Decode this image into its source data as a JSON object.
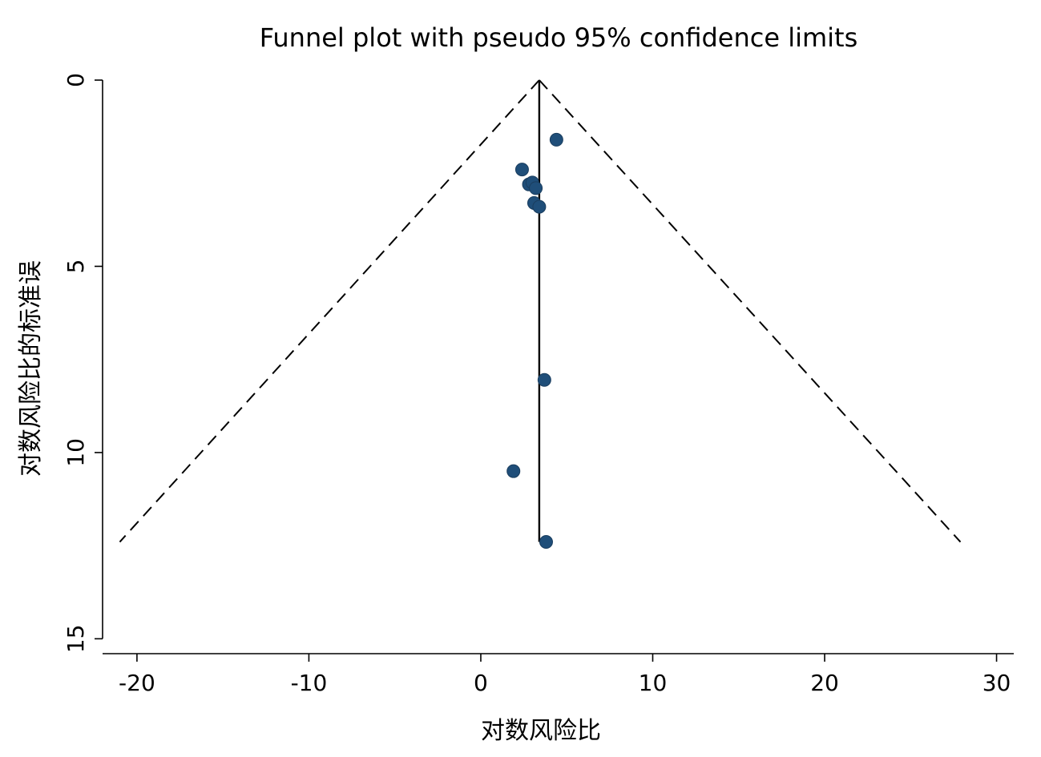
{
  "chart_data": {
    "type": "scatter",
    "title": "Funnel plot with pseudo 95% confidence limits",
    "xlabel": "对数风险比",
    "ylabel": "对数风险比的标准误",
    "xlim": [
      -22,
      31
    ],
    "ylim": [
      0,
      15.4
    ],
    "y_reversed": true,
    "x_ticks": [
      -20,
      -10,
      0,
      10,
      20,
      30
    ],
    "x_tick_labels": [
      "-20",
      "-10",
      "0",
      "10",
      "20",
      "30"
    ],
    "y_ticks": [
      0,
      5,
      10,
      15
    ],
    "y_tick_labels": [
      "0",
      "5",
      "10",
      "15"
    ],
    "grid": false,
    "summary_effect": 3.4,
    "ci_max_se": 12.4,
    "ci_lines": [
      {
        "name": "lower",
        "x": [
          3.4,
          -21.0
        ],
        "y": [
          0,
          12.4
        ]
      },
      {
        "name": "upper",
        "x": [
          3.4,
          27.9
        ],
        "y": [
          0,
          12.4
        ]
      }
    ],
    "points": {
      "x": [
        4.4,
        2.4,
        2.8,
        3.0,
        3.2,
        3.1,
        3.4,
        3.7,
        1.9,
        3.8
      ],
      "y": [
        1.6,
        2.4,
        2.8,
        2.75,
        2.9,
        3.3,
        3.4,
        8.05,
        10.5,
        12.4
      ]
    },
    "colors": {
      "marker": "#1f4e79",
      "lines": "#000000"
    }
  }
}
